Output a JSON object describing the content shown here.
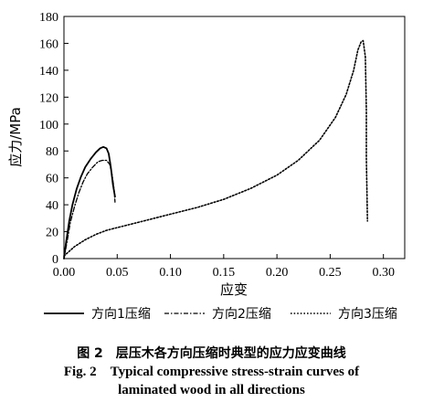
{
  "chart_data": {
    "type": "line",
    "xlabel": "应变",
    "ylabel": "应力/MPa",
    "xlim": [
      0,
      0.32
    ],
    "ylim": [
      0,
      180
    ],
    "x_ticks": [
      "0.00",
      "0.05",
      "0.10",
      "0.15",
      "0.20",
      "0.25",
      "0.30"
    ],
    "y_ticks": [
      "0",
      "20",
      "40",
      "60",
      "80",
      "100",
      "120",
      "140",
      "160",
      "180"
    ],
    "legend_position": "bottom",
    "series": [
      {
        "name": "方向1压缩",
        "style": "solid",
        "points": [
          [
            0.0,
            0
          ],
          [
            0.002,
            12
          ],
          [
            0.005,
            28
          ],
          [
            0.008,
            40
          ],
          [
            0.012,
            52
          ],
          [
            0.016,
            61
          ],
          [
            0.02,
            68
          ],
          [
            0.025,
            74
          ],
          [
            0.03,
            79
          ],
          [
            0.034,
            82
          ],
          [
            0.037,
            83
          ],
          [
            0.04,
            82
          ],
          [
            0.042,
            78
          ],
          [
            0.044,
            68
          ],
          [
            0.046,
            55
          ],
          [
            0.048,
            46
          ]
        ]
      },
      {
        "name": "方向2压缩",
        "style": "dashdot",
        "points": [
          [
            0.0,
            0
          ],
          [
            0.003,
            13
          ],
          [
            0.006,
            27
          ],
          [
            0.01,
            39
          ],
          [
            0.014,
            49
          ],
          [
            0.018,
            57
          ],
          [
            0.022,
            63
          ],
          [
            0.027,
            68
          ],
          [
            0.032,
            72
          ],
          [
            0.036,
            73
          ],
          [
            0.04,
            73
          ],
          [
            0.043,
            70
          ],
          [
            0.045,
            63
          ],
          [
            0.047,
            52
          ],
          [
            0.048,
            42
          ]
        ]
      },
      {
        "name": "方向3压缩",
        "style": "dotted",
        "points": [
          [
            0.0,
            2
          ],
          [
            0.01,
            9
          ],
          [
            0.02,
            14
          ],
          [
            0.03,
            18
          ],
          [
            0.04,
            21
          ],
          [
            0.05,
            23
          ],
          [
            0.075,
            28
          ],
          [
            0.1,
            33
          ],
          [
            0.125,
            38
          ],
          [
            0.15,
            44
          ],
          [
            0.175,
            52
          ],
          [
            0.2,
            62
          ],
          [
            0.22,
            73
          ],
          [
            0.24,
            88
          ],
          [
            0.255,
            105
          ],
          [
            0.265,
            122
          ],
          [
            0.272,
            140
          ],
          [
            0.276,
            155
          ],
          [
            0.279,
            161
          ],
          [
            0.281,
            162
          ],
          [
            0.283,
            150
          ],
          [
            0.284,
            110
          ],
          [
            0.284,
            75
          ],
          [
            0.285,
            28
          ]
        ]
      }
    ]
  },
  "caption": {
    "cn": "图 2　层压木各方向压缩时典型的应力应变曲线",
    "en_line1": "Fig. 2　Typical compressive stress-strain curves of",
    "en_line2": "laminated wood in all directions"
  }
}
